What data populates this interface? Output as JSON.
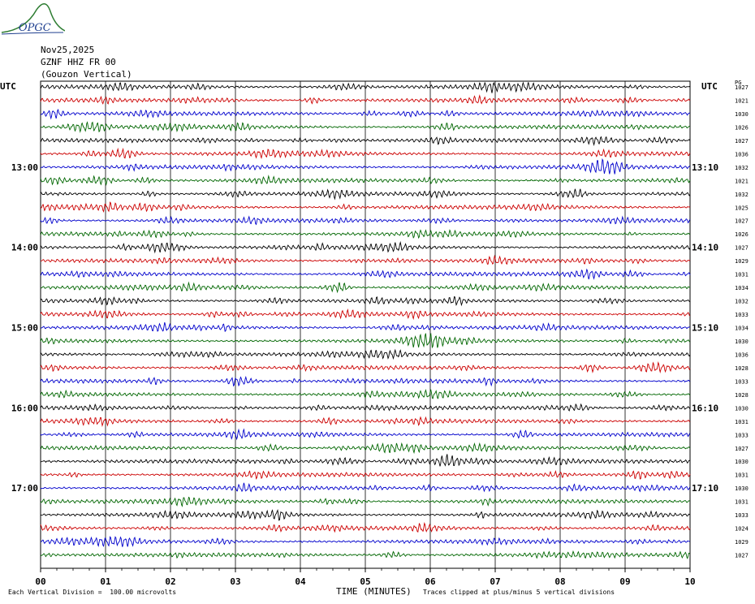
{
  "header": {
    "logo_text": "OPGC",
    "date": "Nov25,2025",
    "station": "GZNF HHZ FR 00",
    "location": "(Gouzon Vertical)"
  },
  "axes": {
    "left_utc_label": "UTC",
    "right_utc_label": "UTC",
    "right_col_label": "PG",
    "left_time_labels": [
      "13:00",
      "14:00",
      "15:00",
      "16:00",
      "17:00"
    ],
    "right_time_labels": [
      "13:10",
      "14:10",
      "15:10",
      "16:10",
      "17:10"
    ]
  },
  "footer": {
    "division_text": "Each Vertical Division =  100.00 microvolts",
    "xlabel": "TIME (MINUTES)",
    "clip_text": "Traces clipped at plus/minus 5 vertical divisions"
  },
  "chart_data": {
    "type": "line",
    "title": "GZNF HHZ FR 00 (Gouzon Vertical)",
    "xlabel": "TIME (MINUTES)",
    "ylabel": "",
    "xlim": [
      0,
      10
    ],
    "x_ticks": [
      "00",
      "01",
      "02",
      "03",
      "04",
      "05",
      "06",
      "07",
      "08",
      "09",
      "10"
    ],
    "trace_colors": [
      "#000000",
      "#cc0000",
      "#0000cc",
      "#006600"
    ],
    "right_values": [
      "1027",
      "1021",
      "1030",
      "1026",
      "1027",
      "1036",
      "1032",
      "1021",
      "1032",
      "1025",
      "1027",
      "1026",
      "1027",
      "1029",
      "1031",
      "1034",
      "1032",
      "1033",
      "1034",
      "1030",
      "1036",
      "1028",
      "1033",
      "1028",
      "1030",
      "1031",
      "1033",
      "1027",
      "1030",
      "1031",
      "1030",
      "1031",
      "1033",
      "1024",
      "1029",
      "1027"
    ],
    "grid": true
  }
}
